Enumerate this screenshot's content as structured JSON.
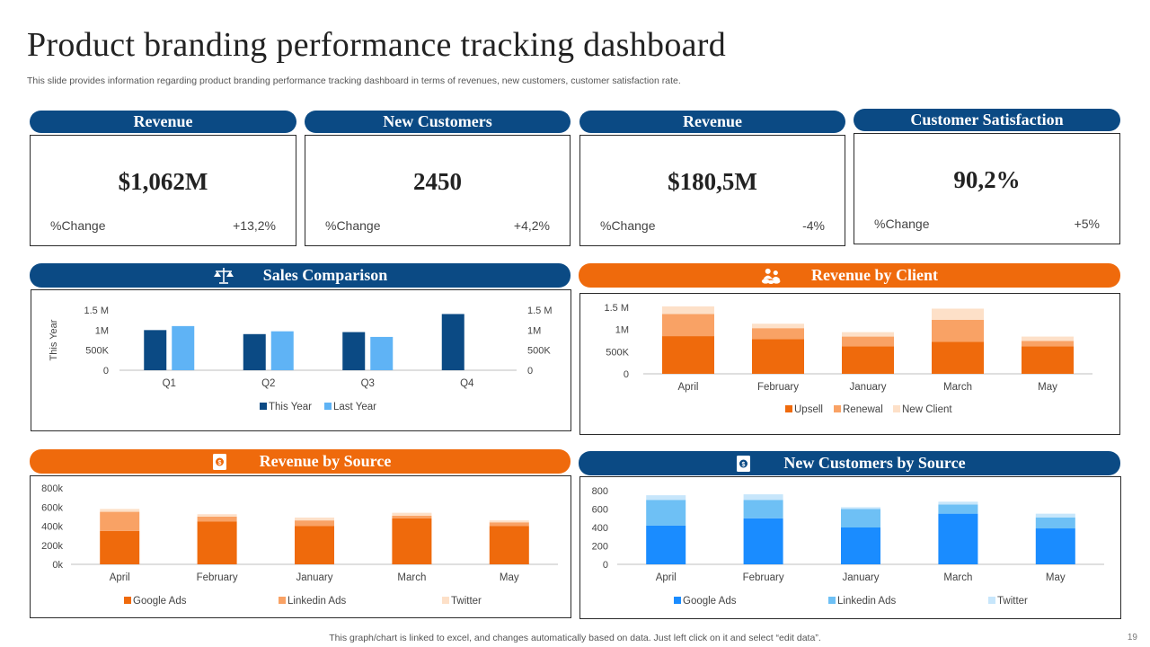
{
  "title": "Product branding performance tracking dashboard",
  "subtitle": "This slide provides information regarding product branding performance tracking dashboard in terms of revenues, new customers, customer satisfaction rate.",
  "kpis": [
    {
      "header": "Revenue",
      "value": "$1,062M",
      "change_label": "%Change",
      "change_value": "+13,2%"
    },
    {
      "header": "New Customers",
      "value": "2450",
      "change_label": "%Change",
      "change_value": "+4,2%"
    },
    {
      "header": "Revenue",
      "value": "$180,5M",
      "change_label": "%Change",
      "change_value": "-4%"
    },
    {
      "header": "Customer Satisfaction",
      "value": "90,2%",
      "change_label": "%Change",
      "change_value": "+5%"
    }
  ],
  "sections": {
    "sales_comparison": {
      "header": "Sales Comparison",
      "icon": "scale-icon"
    },
    "revenue_by_client": {
      "header": "Revenue by Client",
      "icon": "people-money-icon"
    },
    "revenue_by_source": {
      "header": "Revenue by Source",
      "icon": "money-document-icon"
    },
    "new_customers_by_source": {
      "header": "New Customers by Source",
      "icon": "money-document-icon"
    }
  },
  "colors": {
    "navy": "#0b4a84",
    "orange": "#ef6a0c",
    "light_blue": "#5fb3f5",
    "orange_mid": "#f9a265",
    "orange_light": "#fde0c8",
    "bright_blue": "#1a8cff",
    "sky_blue": "#6ec0f5",
    "pale_blue": "#c7e6fb"
  },
  "chart_data": [
    {
      "id": "sales_comparison",
      "type": "bar",
      "categories": [
        "Q1",
        "Q2",
        "Q3",
        "Q4"
      ],
      "series": [
        {
          "name": "This Year",
          "values": [
            1.0,
            0.9,
            0.95,
            1.4
          ]
        },
        {
          "name": "Last Year",
          "values": [
            1.1,
            0.97,
            0.83,
            null
          ]
        }
      ],
      "ylabel": "This Year",
      "ylim": [
        0,
        1.5
      ],
      "yticks": [
        "0",
        "500K",
        "1M",
        "1.5 M"
      ],
      "secondary_yticks": [
        "0",
        "500K",
        "1M",
        "1.5 M"
      ],
      "unit": "M"
    },
    {
      "id": "revenue_by_client",
      "type": "bar",
      "stacked": true,
      "categories": [
        "April",
        "February",
        "January",
        "March",
        "May"
      ],
      "series": [
        {
          "name": "Upsell",
          "values": [
            0.85,
            0.78,
            0.62,
            0.72,
            0.62
          ]
        },
        {
          "name": "Renewal",
          "values": [
            0.5,
            0.25,
            0.22,
            0.5,
            0.12
          ]
        },
        {
          "name": "New Client",
          "values": [
            0.17,
            0.1,
            0.1,
            0.25,
            0.1
          ]
        }
      ],
      "ylim": [
        0,
        1.5
      ],
      "yticks": [
        "0",
        "500K",
        "1M",
        "1.5 M"
      ],
      "unit": "M"
    },
    {
      "id": "revenue_by_source",
      "type": "bar",
      "stacked": true,
      "categories": [
        "April",
        "February",
        "January",
        "March",
        "May"
      ],
      "series": [
        {
          "name": "Google Ads",
          "values": [
            350,
            450,
            400,
            480,
            400
          ]
        },
        {
          "name": "Linkedin Ads",
          "values": [
            200,
            50,
            60,
            30,
            40
          ]
        },
        {
          "name": "Twitter",
          "values": [
            30,
            25,
            30,
            30,
            20
          ]
        }
      ],
      "ylim": [
        0,
        800
      ],
      "yticks": [
        "0k",
        "200k",
        "400k",
        "600k",
        "800k"
      ]
    },
    {
      "id": "new_customers_by_source",
      "type": "bar",
      "stacked": true,
      "categories": [
        "April",
        "February",
        "January",
        "March",
        "May"
      ],
      "series": [
        {
          "name": "Google Ads",
          "values": [
            420,
            500,
            400,
            550,
            390
          ]
        },
        {
          "name": "Linkedin Ads",
          "values": [
            280,
            200,
            200,
            100,
            120
          ]
        },
        {
          "name": "Twitter",
          "values": [
            50,
            60,
            20,
            30,
            40
          ]
        }
      ],
      "ylim": [
        0,
        800
      ],
      "yticks": [
        "0",
        "200",
        "400",
        "600",
        "800"
      ]
    }
  ],
  "footer": "This graph/chart is linked to excel, and changes automatically based on data. Just left click on it and select “edit data”.",
  "page_number": "19"
}
